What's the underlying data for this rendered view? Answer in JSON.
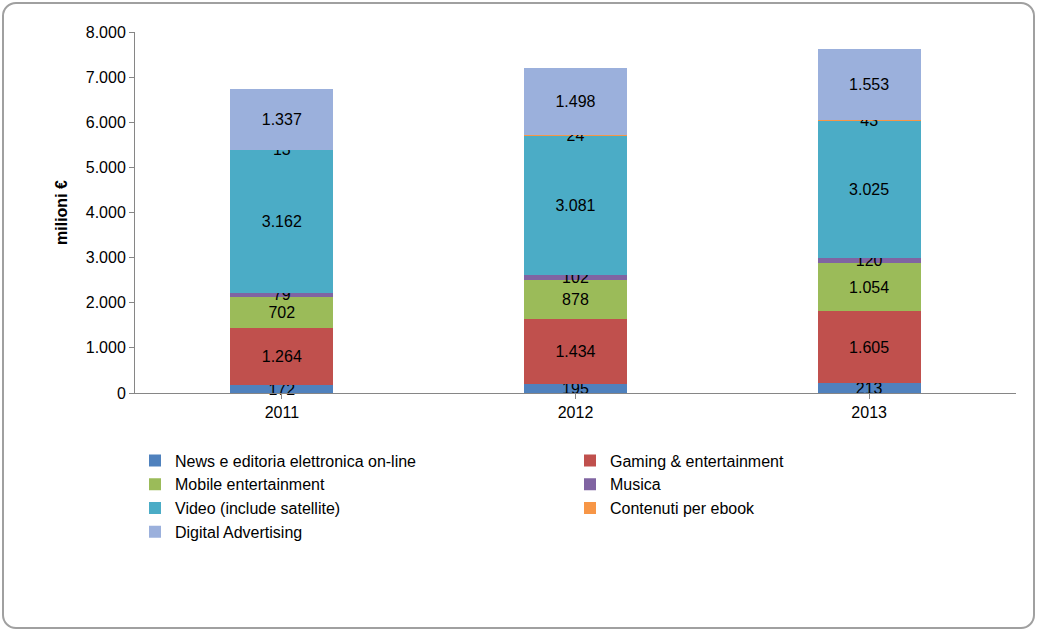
{
  "chart_data": {
    "type": "bar",
    "stacked": true,
    "data_labels": true,
    "grid": false,
    "legend": "bottom",
    "y_label": "milioni €",
    "categories": [
      "2011",
      "2012",
      "2013"
    ],
    "ylim": [
      0,
      8000
    ],
    "yticks": [
      0,
      {
        "value": 1000,
        "label": "1.000"
      },
      {
        "value": 2000,
        "label": "2.000"
      },
      {
        "value": 3000,
        "label": "3.000"
      },
      {
        "value": 4000,
        "label": "4.000"
      },
      {
        "value": 5000,
        "label": "5.000"
      },
      {
        "value": 6000,
        "label": "6.000"
      },
      {
        "value": 7000,
        "label": "7.000"
      },
      {
        "value": 8000,
        "label": "8.000"
      }
    ],
    "series": [
      {
        "name": "News e editoria elettronica on-line",
        "color": "#4F81BD",
        "values": [
          172,
          195,
          213
        ]
      },
      {
        "name": "Gaming & entertainment",
        "color": "#C0504D",
        "values": [
          1264,
          1434,
          1605
        ],
        "value_labels": [
          "1.264",
          "1.434",
          "1.605"
        ]
      },
      {
        "name": "Mobile entertainment",
        "color": "#9BBB59",
        "values": [
          702,
          878,
          1054
        ],
        "value_labels": [
          "702",
          "878",
          "1.054"
        ]
      },
      {
        "name": "Musica",
        "color": "#8064A2",
        "values": [
          79,
          102,
          120
        ]
      },
      {
        "name": "Video (include satellite)",
        "color": "#4BACC6",
        "values": [
          3162,
          3081,
          3025
        ],
        "value_labels": [
          "3.162",
          "3.081",
          "3.025"
        ]
      },
      {
        "name": "Contenuti per ebook",
        "color": "#F79646",
        "values": [
          13,
          24,
          43
        ]
      },
      {
        "name": "Digital Advertising",
        "color": "#9BB0DC",
        "values": [
          1337,
          1498,
          1553
        ],
        "value_labels": [
          "1.337",
          "1.498",
          "1.553"
        ]
      }
    ]
  }
}
